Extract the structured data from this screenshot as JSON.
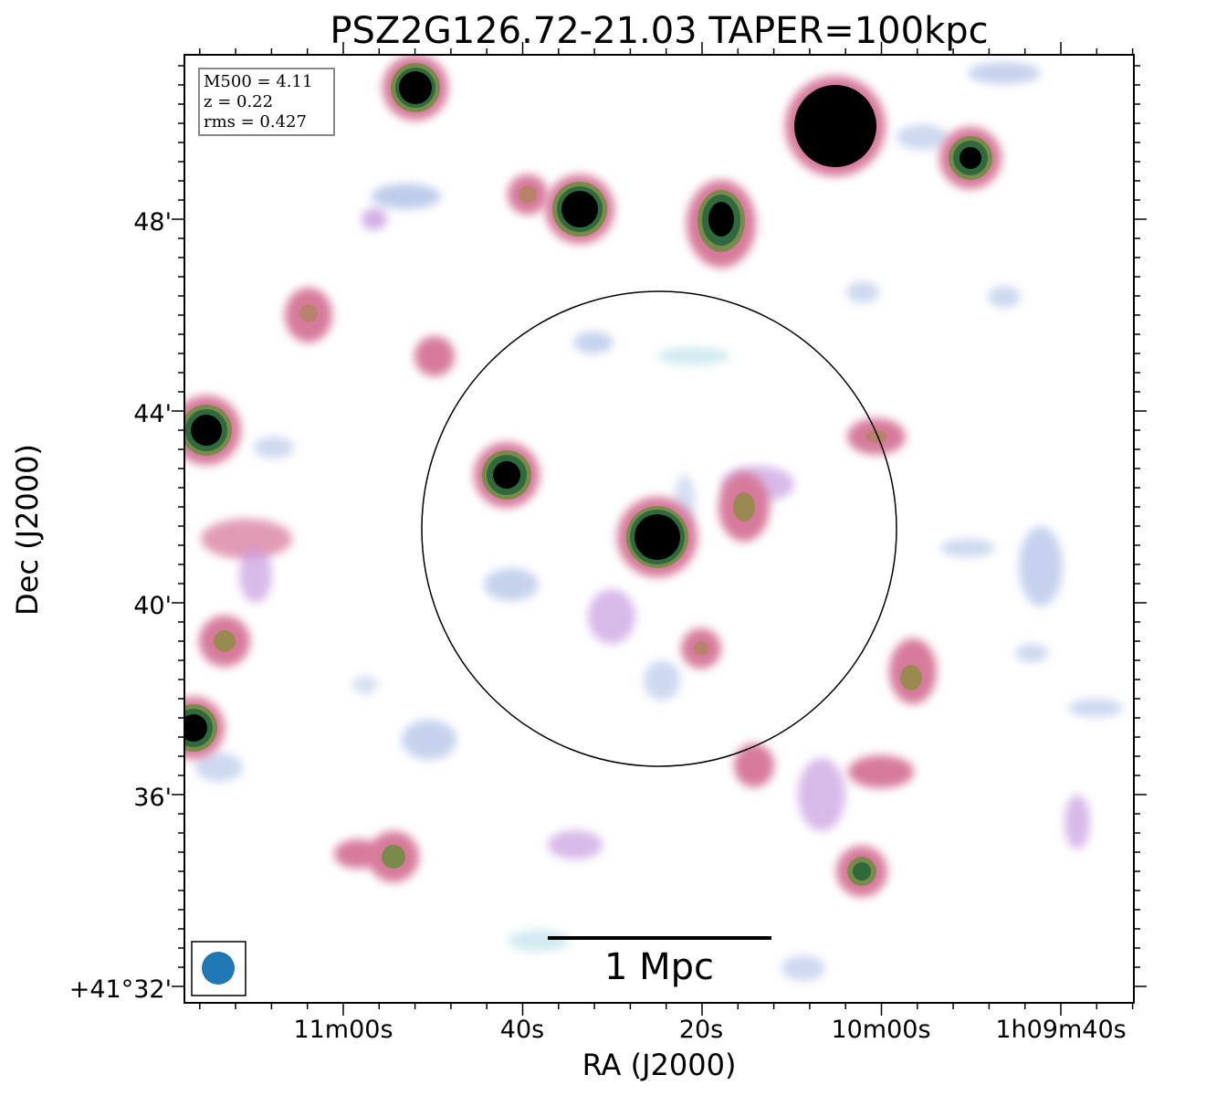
{
  "chart_data": {
    "type": "heatmap",
    "title": "PSZ2G126.72-21.03 TAPER=100kpc",
    "xlabel": "RA (J2000)",
    "ylabel": "Dec (J2000)",
    "x_ticks": [
      "11m00s",
      "40s",
      "20s",
      "10m00s",
      "1h09m40s"
    ],
    "y_ticks": [
      "+41°32'",
      "36'",
      "40'",
      "44'",
      "48'"
    ],
    "info": {
      "mass": "M500 = 4.11",
      "redshift": "z = 0.22",
      "rms": "rms = 0.427"
    },
    "scale_bar_label": "1 Mpc",
    "colors": {
      "faint": "#c7e6ec",
      "low": "#aebfe6",
      "mid": "#c79ce0",
      "pink": "#d77a9c",
      "olive": "#7a8a4a",
      "green": "#2e6a3c",
      "peak": "#000000",
      "beam": "#1f77b4"
    }
  }
}
